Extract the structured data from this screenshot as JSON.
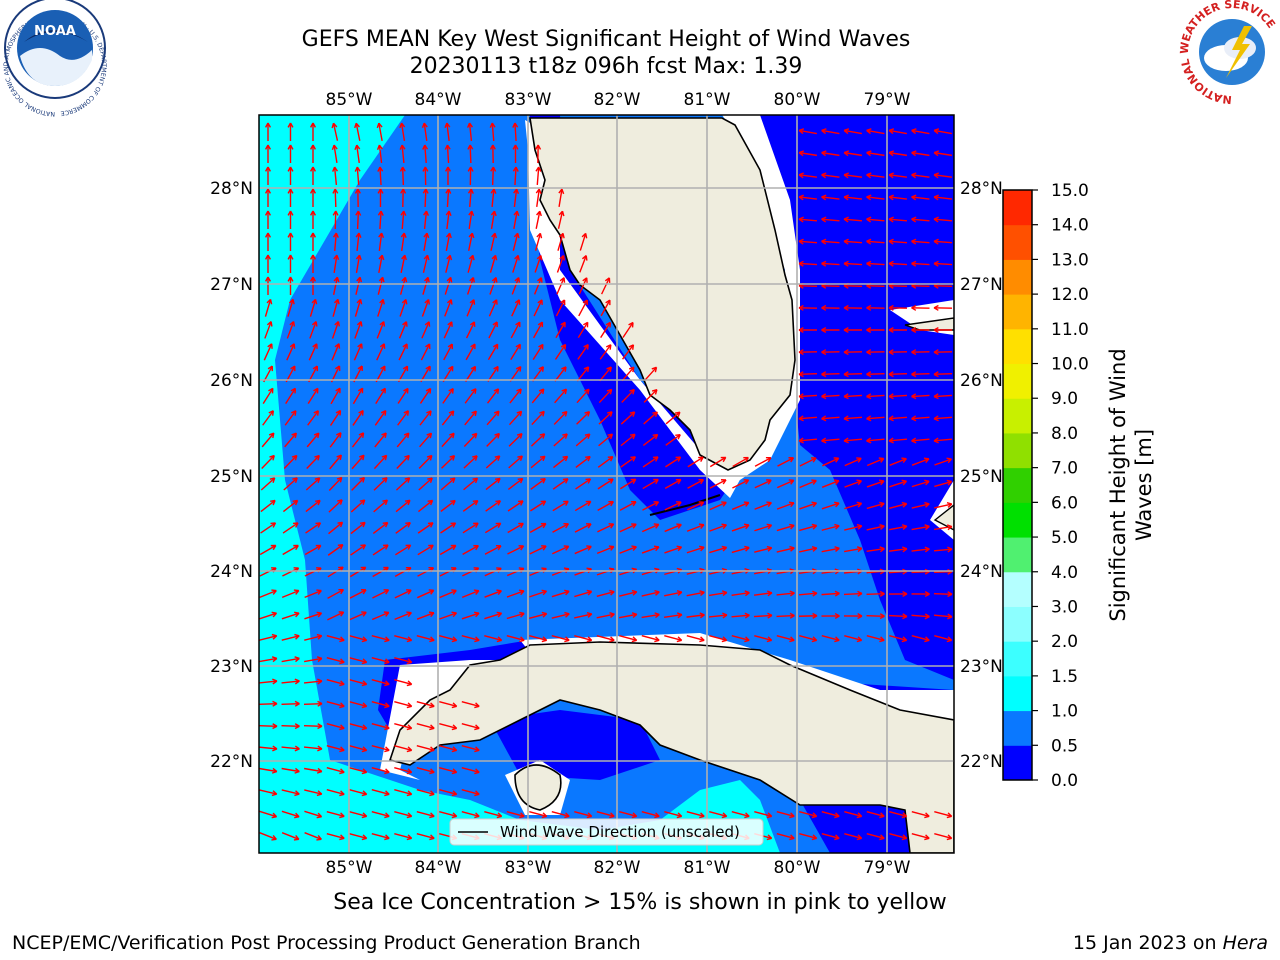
{
  "title_line1": "GEFS MEAN Key West Significant Height of Wind Waves",
  "title_line2": "20230113 t18z 096h fcst   Max: 1.39",
  "logos": {
    "left": {
      "text": "NOAA",
      "ring_text": "NATIONAL OCEANIC AND ATMOSPHERIC ADMINISTRATION · U.S. DEPARTMENT OF COMMERCE"
    },
    "right": {
      "ring_text": "NATIONAL WEATHER SERVICE"
    }
  },
  "map": {
    "lon_labels": [
      "85°W",
      "84°W",
      "83°W",
      "82°W",
      "81°W",
      "80°W",
      "79°W"
    ],
    "lat_labels": [
      "28°N",
      "27°N",
      "26°N",
      "25°N",
      "24°N",
      "23°N",
      "22°N"
    ],
    "legend_label": "Wind Wave Direction (unscaled)"
  },
  "colorbar": {
    "label_line1": "Significant Height of Wind",
    "label_line2": "Waves [m]",
    "ticks": [
      "0.0",
      "0.5",
      "1.0",
      "1.5",
      "2.0",
      "3.0",
      "4.0",
      "5.0",
      "6.0",
      "7.0",
      "8.0",
      "9.0",
      "10.0",
      "11.0",
      "12.0",
      "13.0",
      "14.0",
      "15.0"
    ],
    "colors": [
      "#0000ff",
      "#0a78ff",
      "#00ffff",
      "#3cffff",
      "#8cffff",
      "#b4ffff",
      "#50f070",
      "#00e000",
      "#30d000",
      "#90e000",
      "#c8f000",
      "#f0f000",
      "#ffe000",
      "#ffb400",
      "#ff8c00",
      "#ff5000",
      "#ff2800",
      "#ff0000"
    ]
  },
  "colors": {
    "ocean_low": "#0000ff",
    "ocean_mid": "#0a78ff",
    "ocean_high": "#00ffff",
    "land": "#efedde",
    "arrows": "#ff0000",
    "grid": "#b0b0b0"
  },
  "ice_note": "Sea Ice Concentration > 15% is shown in pink to yellow",
  "footer_left": "NCEP/EMC/Verification Post Processing Product Generation Branch",
  "footer_right_date": "15 Jan 2023 on ",
  "footer_right_host": "Hera"
}
